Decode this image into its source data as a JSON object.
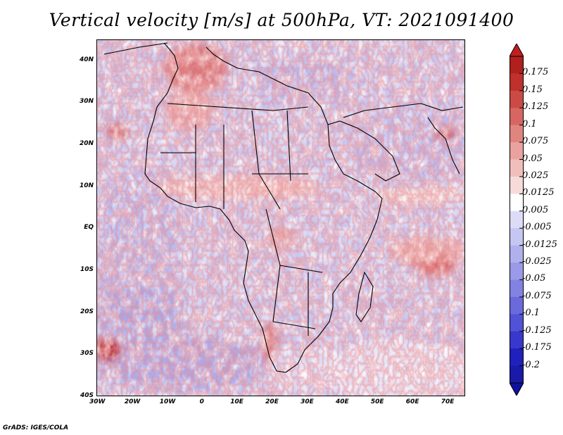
{
  "title": "Vertical velocity [m/s] at 500hPa, VT: 2021091400",
  "credit": "GrADS: IGES/COLA",
  "map": {
    "x_ticks": [
      "30W",
      "20W",
      "10W",
      "0",
      "10E",
      "20E",
      "30E",
      "40E",
      "50E",
      "60E",
      "70E"
    ],
    "y_ticks": [
      "40N",
      "30N",
      "20N",
      "10N",
      "EQ",
      "10S",
      "20S",
      "30S",
      "40S"
    ],
    "lon_range": [
      -30,
      75
    ],
    "lat_range": [
      -40,
      45
    ]
  },
  "colorbar": {
    "labels": [
      "0.175",
      "0.15",
      "0.125",
      "0.1",
      "0.075",
      "0.05",
      "0.025",
      "0.0125",
      "0.005",
      "-0.005",
      "-0.0125",
      "-0.025",
      "-0.05",
      "-0.075",
      "-0.1",
      "-0.125",
      "-0.175",
      "-0.2"
    ],
    "colors": [
      "#b0201e",
      "#c0302c",
      "#cc4a46",
      "#d76662",
      "#e08480",
      "#e9a29e",
      "#f0bfbc",
      "#f6dbd9",
      "#ffffff",
      "#dcdcf7",
      "#c6c6f2",
      "#b0b0ed",
      "#9a9ae8",
      "#8282e2",
      "#6a6adc",
      "#5252d6",
      "#3838cc",
      "#2020bc",
      "#1a1aa8"
    ],
    "top_color": "#c01f1f",
    "bottom_color": "#1010a0"
  },
  "colors": {
    "frame": "#000000",
    "field_background": "#c8c8f2"
  }
}
